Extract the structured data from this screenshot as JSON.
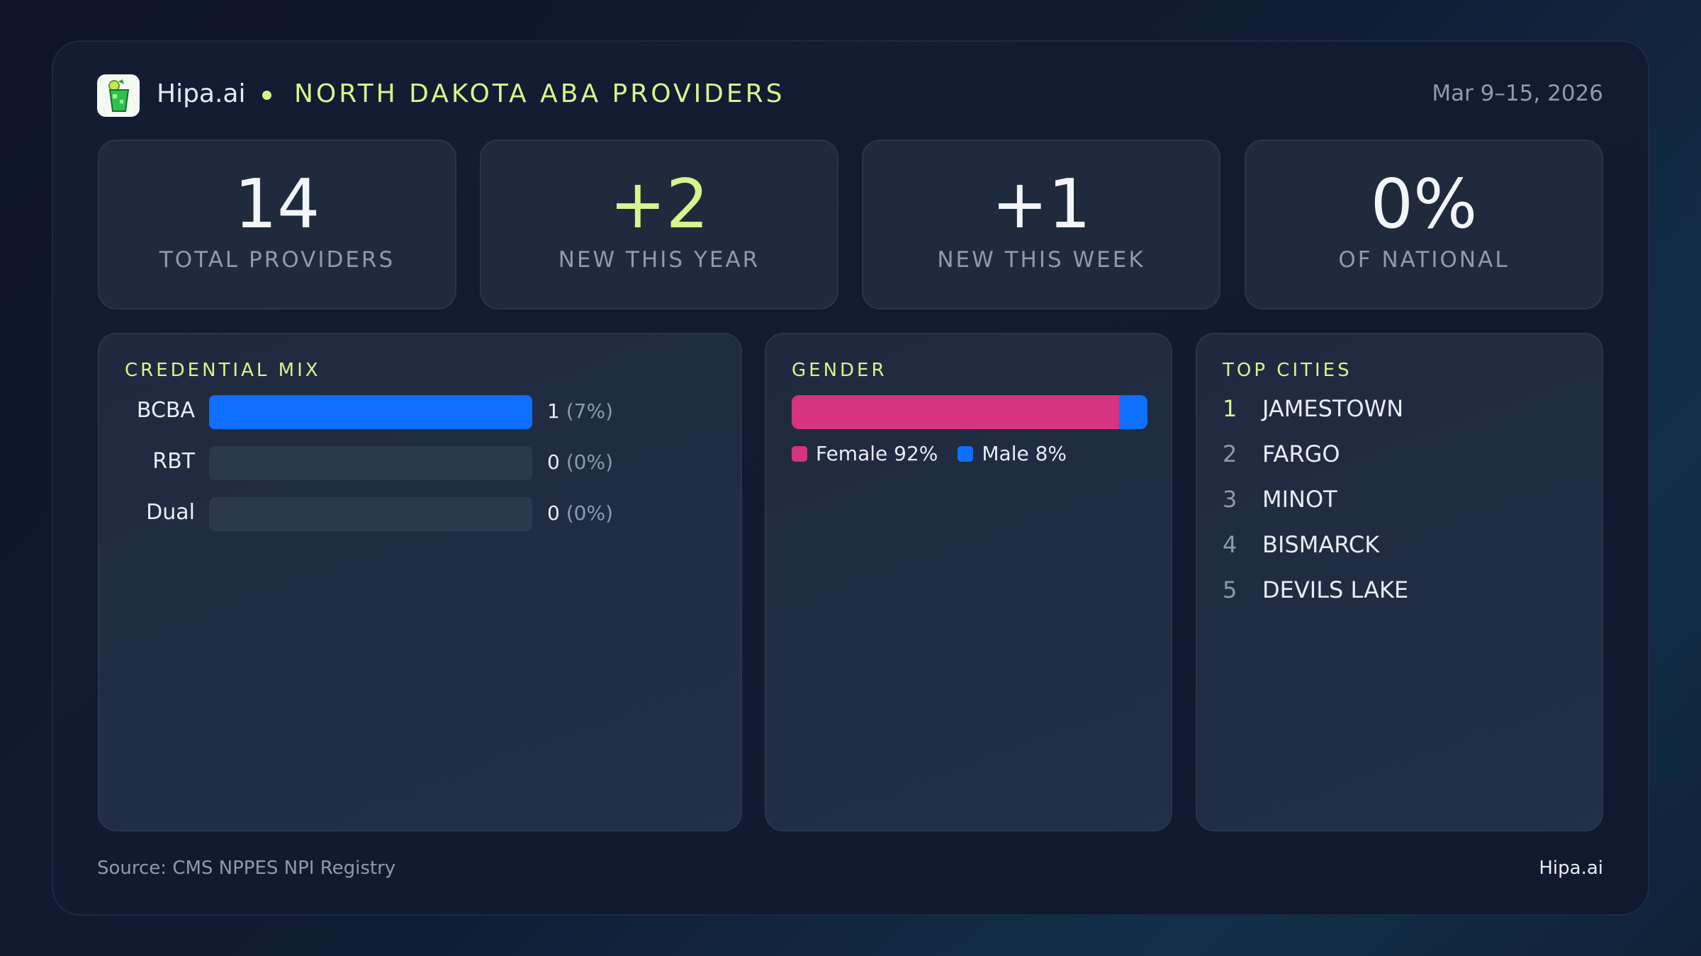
{
  "header": {
    "brand": "Hipa.ai",
    "title": "NORTH DAKOTA ABA PROVIDERS",
    "date_range": "Mar 9–15, 2026"
  },
  "stats": [
    {
      "value": "14",
      "label": "TOTAL PROVIDERS",
      "color": "#f3f5f9"
    },
    {
      "value": "+2",
      "label": "NEW THIS YEAR",
      "color": "#d6f58c"
    },
    {
      "value": "+1",
      "label": "NEW THIS WEEK",
      "color": "#f3f5f9"
    },
    {
      "value": "0%",
      "label": "OF NATIONAL",
      "color": "#f3f5f9"
    }
  ],
  "credential_mix": {
    "title": "CREDENTIAL MIX",
    "color": "#0f6fff",
    "rows": [
      {
        "label": "BCBA",
        "count": "1",
        "pct": "(7%)",
        "fill": 1
      },
      {
        "label": "RBT",
        "count": "0",
        "pct": "(0%)",
        "fill": 0
      },
      {
        "label": "Dual",
        "count": "0",
        "pct": "(0%)",
        "fill": 0
      }
    ]
  },
  "gender": {
    "title": "GENDER",
    "segments": [
      {
        "label": "Female 92%",
        "percent": 92,
        "color": "#d63384"
      },
      {
        "label": "Male 8%",
        "percent": 8,
        "color": "#0f6fff"
      }
    ]
  },
  "top_cities": {
    "title": "TOP CITIES",
    "items": [
      {
        "rank": "1",
        "name": "JAMESTOWN"
      },
      {
        "rank": "2",
        "name": "FARGO"
      },
      {
        "rank": "3",
        "name": "MINOT"
      },
      {
        "rank": "4",
        "name": "BISMARCK"
      },
      {
        "rank": "5",
        "name": "DEVILS LAKE"
      }
    ]
  },
  "footer": {
    "source": "Source: CMS NPPES NPI Registry",
    "brand": "Hipa.ai"
  }
}
